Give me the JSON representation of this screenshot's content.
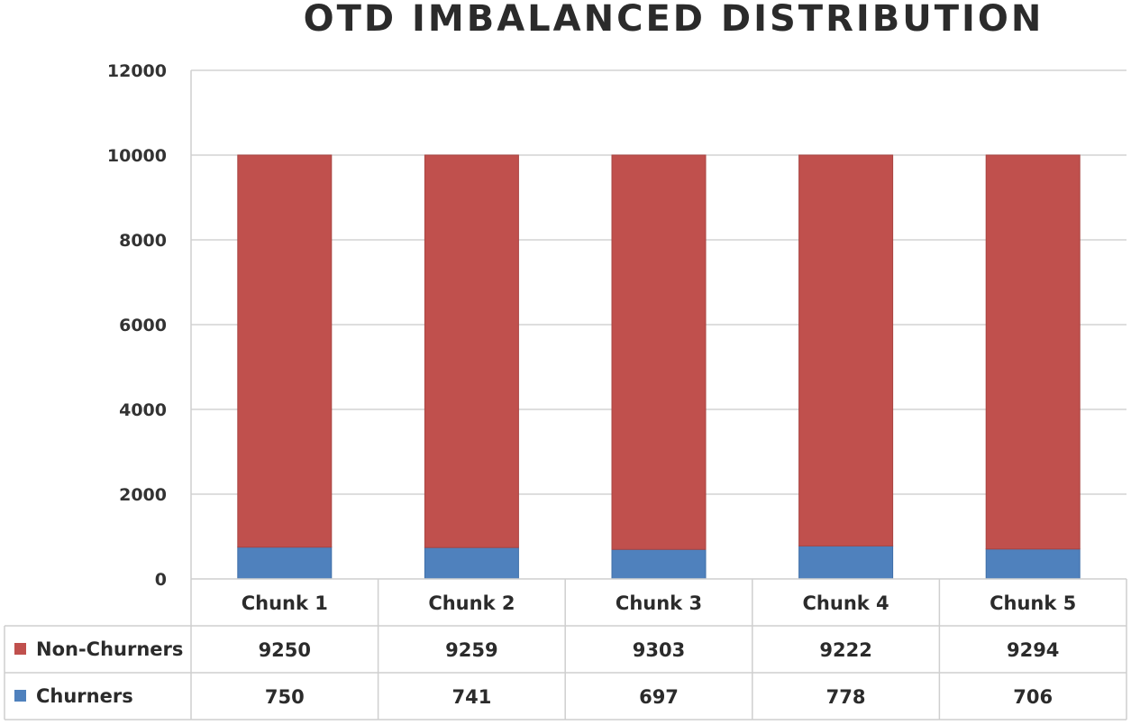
{
  "chart_data": {
    "type": "bar",
    "stacked": true,
    "title": "OTD IMBALANCED  DISTRIBUTION",
    "categories": [
      "Chunk 1",
      "Chunk 2",
      "Chunk 3",
      "Chunk 4",
      "Chunk 5"
    ],
    "series": [
      {
        "name": "Non-Churners",
        "values": [
          9250,
          9259,
          9303,
          9222,
          9294
        ],
        "color": "#c0504d"
      },
      {
        "name": "Churners",
        "values": [
          750,
          741,
          697,
          778,
          706
        ],
        "color": "#4f81bd"
      }
    ],
    "ylim": [
      0,
      12000
    ],
    "yticks": [
      0,
      2000,
      4000,
      6000,
      8000,
      10000,
      12000
    ],
    "grid": true,
    "data_table": true,
    "legend": "data-table-left"
  }
}
